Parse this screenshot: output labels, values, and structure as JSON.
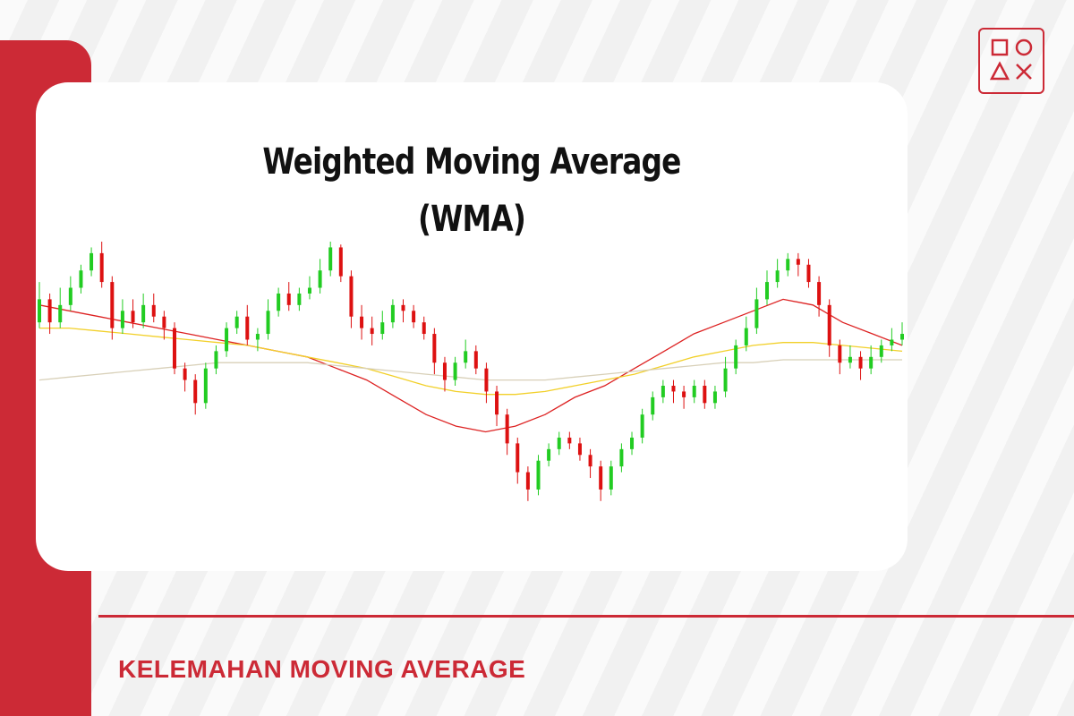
{
  "title_line1": "Weighted Moving Average",
  "title_line2": "(WMA)",
  "footer_text": "KELEMAHAN MOVING AVERAGE",
  "colors": {
    "accent": "#cc2a36",
    "bullish": "#22cc22",
    "bearish": "#dd1111",
    "wma_fast": "#dd2222",
    "wma_medium": "#f2d02a",
    "wma_slow": "#d8d0b8"
  },
  "logo_icon": "shapes-logo-icon",
  "chart_data": {
    "type": "candlestick",
    "title": "Weighted Moving Average (WMA)",
    "xlabel": "",
    "ylabel": "",
    "grid": false,
    "ylim": [
      0,
      100
    ],
    "candles": [
      [
        72,
        80,
        86,
        70
      ],
      [
        80,
        72,
        82,
        68
      ],
      [
        72,
        78,
        84,
        70
      ],
      [
        78,
        84,
        88,
        76
      ],
      [
        84,
        90,
        92,
        82
      ],
      [
        90,
        96,
        98,
        88
      ],
      [
        96,
        86,
        100,
        84
      ],
      [
        86,
        70,
        88,
        66
      ],
      [
        70,
        76,
        80,
        68
      ],
      [
        76,
        72,
        80,
        70
      ],
      [
        72,
        78,
        82,
        70
      ],
      [
        78,
        74,
        82,
        72
      ],
      [
        74,
        70,
        76,
        66
      ],
      [
        70,
        56,
        72,
        54
      ],
      [
        56,
        52,
        58,
        48
      ],
      [
        52,
        44,
        54,
        40
      ],
      [
        44,
        56,
        58,
        42
      ],
      [
        56,
        62,
        64,
        54
      ],
      [
        62,
        70,
        72,
        60
      ],
      [
        70,
        74,
        76,
        68
      ],
      [
        74,
        66,
        78,
        64
      ],
      [
        66,
        68,
        70,
        62
      ],
      [
        68,
        76,
        80,
        66
      ],
      [
        76,
        82,
        84,
        74
      ],
      [
        82,
        78,
        86,
        76
      ],
      [
        78,
        82,
        84,
        76
      ],
      [
        82,
        84,
        88,
        80
      ],
      [
        84,
        90,
        94,
        82
      ],
      [
        90,
        98,
        100,
        88
      ],
      [
        98,
        88,
        99,
        86
      ],
      [
        88,
        74,
        90,
        70
      ],
      [
        74,
        70,
        78,
        66
      ],
      [
        70,
        68,
        74,
        64
      ],
      [
        68,
        72,
        76,
        66
      ],
      [
        72,
        78,
        80,
        70
      ],
      [
        78,
        76,
        80,
        72
      ],
      [
        76,
        72,
        78,
        70
      ],
      [
        72,
        68,
        74,
        66
      ],
      [
        68,
        58,
        70,
        54
      ],
      [
        58,
        52,
        60,
        48
      ],
      [
        52,
        58,
        60,
        50
      ],
      [
        58,
        62,
        66,
        56
      ],
      [
        62,
        56,
        64,
        54
      ],
      [
        56,
        48,
        58,
        44
      ],
      [
        48,
        40,
        50,
        36
      ],
      [
        40,
        30,
        42,
        26
      ],
      [
        30,
        20,
        32,
        16
      ],
      [
        20,
        14,
        22,
        10
      ],
      [
        14,
        24,
        26,
        12
      ],
      [
        24,
        28,
        30,
        22
      ],
      [
        28,
        32,
        34,
        26
      ],
      [
        32,
        30,
        34,
        28
      ],
      [
        30,
        26,
        32,
        24
      ],
      [
        26,
        22,
        28,
        18
      ],
      [
        22,
        14,
        24,
        10
      ],
      [
        14,
        22,
        24,
        12
      ],
      [
        22,
        28,
        30,
        20
      ],
      [
        28,
        32,
        34,
        26
      ],
      [
        32,
        40,
        42,
        30
      ],
      [
        40,
        46,
        48,
        38
      ],
      [
        46,
        50,
        52,
        44
      ],
      [
        50,
        48,
        52,
        44
      ],
      [
        48,
        46,
        50,
        42
      ],
      [
        46,
        50,
        52,
        44
      ],
      [
        50,
        44,
        52,
        42
      ],
      [
        44,
        48,
        50,
        42
      ],
      [
        48,
        56,
        60,
        46
      ],
      [
        56,
        64,
        66,
        54
      ],
      [
        64,
        70,
        74,
        62
      ],
      [
        70,
        80,
        84,
        68
      ],
      [
        80,
        86,
        90,
        78
      ],
      [
        86,
        90,
        94,
        84
      ],
      [
        90,
        94,
        96,
        88
      ],
      [
        94,
        92,
        96,
        88
      ],
      [
        92,
        86,
        94,
        84
      ],
      [
        86,
        78,
        88,
        74
      ],
      [
        78,
        64,
        80,
        60
      ],
      [
        64,
        58,
        66,
        54
      ],
      [
        58,
        60,
        64,
        56
      ],
      [
        60,
        56,
        62,
        52
      ],
      [
        56,
        60,
        64,
        54
      ],
      [
        60,
        64,
        66,
        58
      ],
      [
        64,
        66,
        70,
        62
      ],
      [
        66,
        68,
        72,
        64
      ]
    ],
    "series": [
      {
        "values": [
          78,
          76,
          74,
          72,
          70,
          68,
          66,
          64,
          62,
          60,
          56,
          52,
          46,
          40,
          36,
          34,
          36,
          40,
          46,
          50,
          56,
          62,
          68,
          72,
          76,
          80,
          78,
          72,
          68,
          64
        ]
      },
      {
        "values": [
          70,
          70,
          69,
          68,
          67,
          66,
          65,
          64,
          62,
          60,
          58,
          56,
          53,
          50,
          48,
          47,
          47,
          48,
          50,
          52,
          54,
          57,
          60,
          62,
          64,
          65,
          65,
          64,
          63,
          62
        ]
      },
      {
        "values": [
          52,
          53,
          54,
          55,
          56,
          57,
          58,
          58,
          58,
          58,
          57,
          56,
          55,
          54,
          53,
          52,
          52,
          52,
          53,
          54,
          55,
          56,
          57,
          58,
          58,
          59,
          59,
          59,
          59,
          59
        ]
      }
    ]
  }
}
